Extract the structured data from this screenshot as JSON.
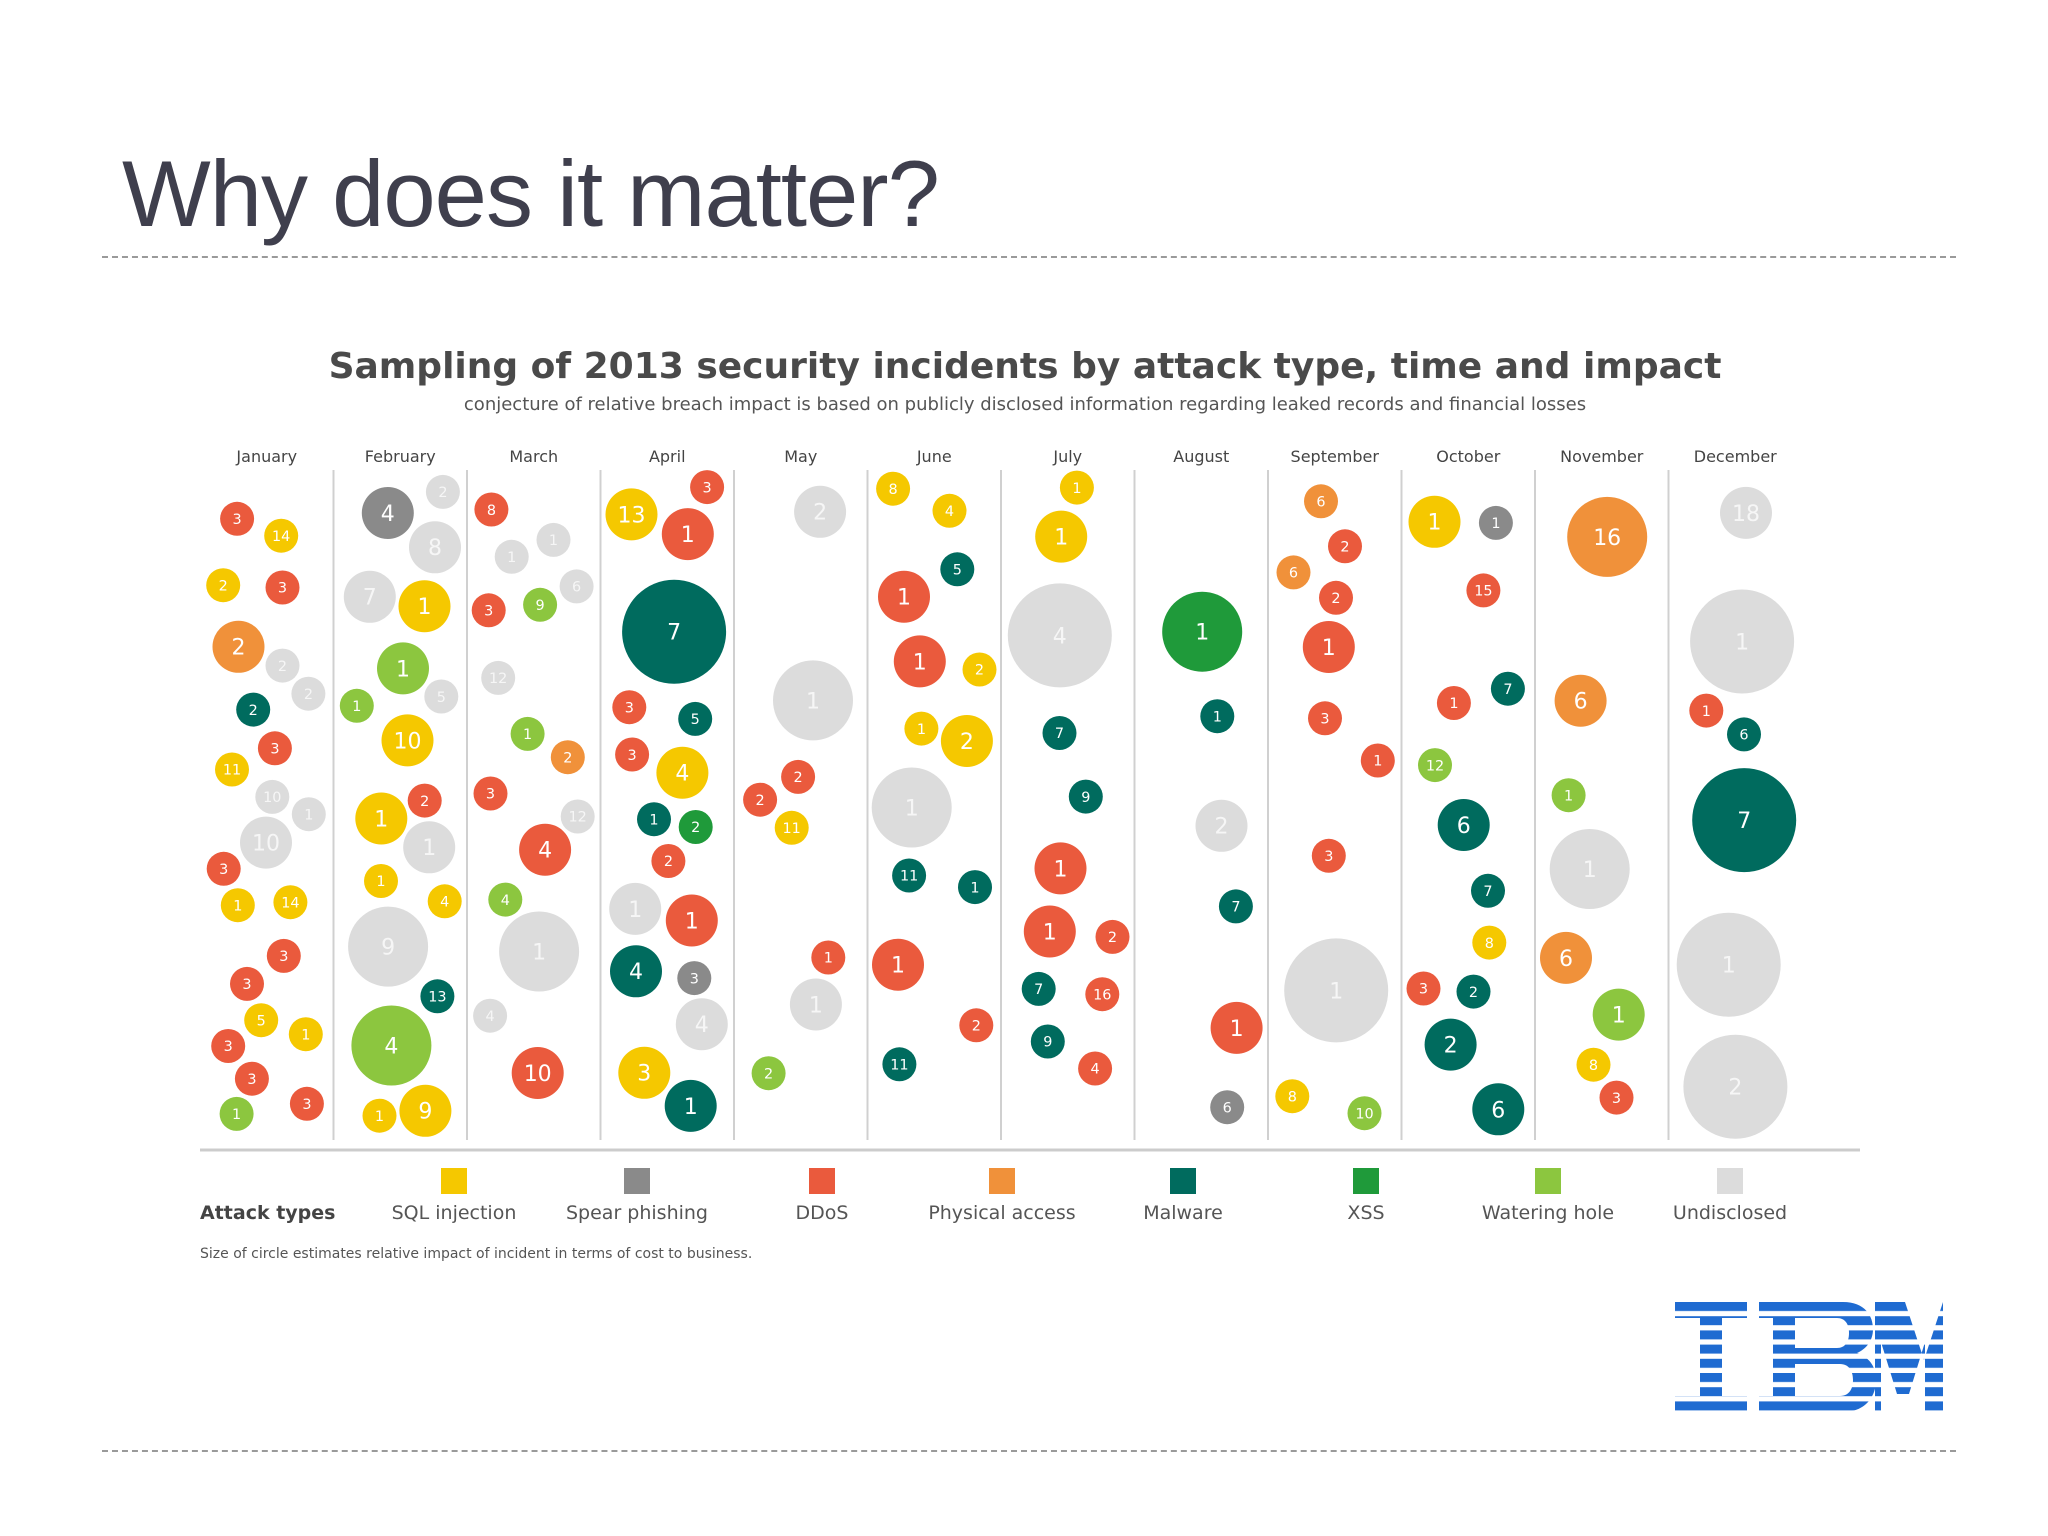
{
  "slide": {
    "title": "Why does it matter?"
  },
  "colors": {
    "SQL injection": "#f5c800",
    "Spear phishing": "#8a8a8a",
    "DDoS": "#ea5a3d",
    "Physical access": "#f0913a",
    "Malware": "#006b5e",
    "XSS": "#1f9a3a",
    "Watering hole": "#8cc63f",
    "Undisclosed": "#dcdcdc"
  },
  "logo": {
    "text": "IBM",
    "color": "#1f6bd1"
  },
  "chart_data": {
    "type": "scatter",
    "title": "Sampling of 2013 security incidents by attack type, time and impact",
    "subtitle": "conjecture of relative breach impact is based on publicly disclosed information regarding leaked records and financial losses",
    "months": [
      "January",
      "February",
      "March",
      "April",
      "May",
      "June",
      "July",
      "August",
      "September",
      "October",
      "November",
      "December"
    ],
    "legend_title": "Attack types",
    "legend": [
      "SQL injection",
      "Spear phishing",
      "DDoS",
      "Physical access",
      "Malware",
      "XSS",
      "Watering hole",
      "Undisclosed"
    ],
    "footnote": "Size of circle estimates relative impact of incident in terms of cost to business.",
    "encoding": {
      "x": "month",
      "color": "attack type",
      "size": "relative impact (1 = small, 5 = largest)",
      "label": "incident number"
    },
    "incidents": [
      {
        "month": "January",
        "type": "DDoS",
        "label": "3",
        "impact": 1
      },
      {
        "month": "January",
        "type": "DDoS",
        "label": "3",
        "impact": 1
      },
      {
        "month": "January",
        "type": "DDoS",
        "label": "3",
        "impact": 1
      },
      {
        "month": "January",
        "type": "SQL injection",
        "label": "14",
        "impact": 1
      },
      {
        "month": "January",
        "type": "DDoS",
        "label": "3",
        "impact": 1
      },
      {
        "month": "January",
        "type": "Undisclosed",
        "label": "10",
        "impact": 2
      },
      {
        "month": "January",
        "type": "Physical access",
        "label": "2",
        "impact": 2
      },
      {
        "month": "January",
        "type": "Undisclosed",
        "label": "10",
        "impact": 1
      },
      {
        "month": "January",
        "type": "DDoS",
        "label": "3",
        "impact": 1
      },
      {
        "month": "January",
        "type": "DDoS",
        "label": "3",
        "impact": 1
      },
      {
        "month": "January",
        "type": "SQL injection",
        "label": "11",
        "impact": 1
      },
      {
        "month": "January",
        "type": "Undisclosed",
        "label": "2",
        "impact": 1
      },
      {
        "month": "January",
        "type": "Watering hole",
        "label": "1",
        "impact": 1
      },
      {
        "month": "January",
        "type": "Malware",
        "label": "2",
        "impact": 1
      },
      {
        "month": "January",
        "type": "SQL injection",
        "label": "14",
        "impact": 1
      },
      {
        "month": "January",
        "type": "Undisclosed",
        "label": "2",
        "impact": 1
      },
      {
        "month": "January",
        "type": "SQL injection",
        "label": "5",
        "impact": 1
      },
      {
        "month": "January",
        "type": "SQL injection",
        "label": "1",
        "impact": 1
      },
      {
        "month": "January",
        "type": "DDoS",
        "label": "3",
        "impact": 1
      },
      {
        "month": "January",
        "type": "SQL injection",
        "label": "2",
        "impact": 1
      },
      {
        "month": "January",
        "type": "DDoS",
        "label": "3",
        "impact": 1
      },
      {
        "month": "January",
        "type": "DDoS",
        "label": "3",
        "impact": 1
      },
      {
        "month": "January",
        "type": "Undisclosed",
        "label": "1",
        "impact": 1
      },
      {
        "month": "January",
        "type": "SQL injection",
        "label": "1",
        "impact": 1
      },
      {
        "month": "February",
        "type": "SQL injection",
        "label": "10",
        "impact": 2
      },
      {
        "month": "February",
        "type": "Watering hole",
        "label": "1",
        "impact": 1
      },
      {
        "month": "February",
        "type": "Undisclosed",
        "label": "9",
        "impact": 3
      },
      {
        "month": "February",
        "type": "SQL injection",
        "label": "1",
        "impact": 1
      },
      {
        "month": "February",
        "type": "DDoS",
        "label": "2",
        "impact": 1
      },
      {
        "month": "February",
        "type": "Watering hole",
        "label": "4",
        "impact": 3
      },
      {
        "month": "February",
        "type": "SQL injection",
        "label": "1",
        "impact": 2
      },
      {
        "month": "February",
        "type": "SQL injection",
        "label": "1",
        "impact": 1
      },
      {
        "month": "February",
        "type": "Undisclosed",
        "label": "1",
        "impact": 2
      },
      {
        "month": "February",
        "type": "Undisclosed",
        "label": "2",
        "impact": 1
      },
      {
        "month": "February",
        "type": "Undisclosed",
        "label": "7",
        "impact": 2
      },
      {
        "month": "February",
        "type": "Spear phishing",
        "label": "4",
        "impact": 2
      },
      {
        "month": "February",
        "type": "Malware",
        "label": "13",
        "impact": 1
      },
      {
        "month": "February",
        "type": "Watering hole",
        "label": "1",
        "impact": 2
      },
      {
        "month": "February",
        "type": "SQL injection",
        "label": "1",
        "impact": 2
      },
      {
        "month": "February",
        "type": "Undisclosed",
        "label": "5",
        "impact": 1
      },
      {
        "month": "February",
        "type": "SQL injection",
        "label": "9",
        "impact": 2
      },
      {
        "month": "February",
        "type": "Undisclosed",
        "label": "8",
        "impact": 2
      },
      {
        "month": "February",
        "type": "SQL injection",
        "label": "4",
        "impact": 1
      },
      {
        "month": "March",
        "type": "Watering hole",
        "label": "4",
        "impact": 1
      },
      {
        "month": "March",
        "type": "DDoS",
        "label": "4",
        "impact": 2
      },
      {
        "month": "March",
        "type": "Undisclosed",
        "label": "1",
        "impact": 1
      },
      {
        "month": "March",
        "type": "Undisclosed",
        "label": "12",
        "impact": 1
      },
      {
        "month": "March",
        "type": "Physical access",
        "label": "2",
        "impact": 1
      },
      {
        "month": "March",
        "type": "Undisclosed",
        "label": "4",
        "impact": 1
      },
      {
        "month": "March",
        "type": "Watering hole",
        "label": "1",
        "impact": 1
      },
      {
        "month": "March",
        "type": "DDoS",
        "label": "10",
        "impact": 2
      },
      {
        "month": "March",
        "type": "DDoS",
        "label": "3",
        "impact": 1
      },
      {
        "month": "March",
        "type": "DDoS",
        "label": "8",
        "impact": 1
      },
      {
        "month": "March",
        "type": "Undisclosed",
        "label": "12",
        "impact": 1
      },
      {
        "month": "March",
        "type": "Undisclosed",
        "label": "1",
        "impact": 1
      },
      {
        "month": "March",
        "type": "Undisclosed",
        "label": "1",
        "impact": 3
      },
      {
        "month": "March",
        "type": "Undisclosed",
        "label": "6",
        "impact": 1
      },
      {
        "month": "March",
        "type": "Watering hole",
        "label": "9",
        "impact": 1
      },
      {
        "month": "March",
        "type": "DDoS",
        "label": "3",
        "impact": 1
      },
      {
        "month": "April",
        "type": "Malware",
        "label": "5",
        "impact": 1
      },
      {
        "month": "April",
        "type": "DDoS",
        "label": "3",
        "impact": 1
      },
      {
        "month": "April",
        "type": "Malware",
        "label": "1",
        "impact": 1
      },
      {
        "month": "April",
        "type": "DDoS",
        "label": "3",
        "impact": 1
      },
      {
        "month": "April",
        "type": "DDoS",
        "label": "2",
        "impact": 1
      },
      {
        "month": "April",
        "type": "Malware",
        "label": "4",
        "impact": 2
      },
      {
        "month": "April",
        "type": "Undisclosed",
        "label": "4",
        "impact": 2
      },
      {
        "month": "April",
        "type": "XSS",
        "label": "2",
        "impact": 1
      },
      {
        "month": "April",
        "type": "DDoS",
        "label": "1",
        "impact": 2
      },
      {
        "month": "April",
        "type": "SQL injection",
        "label": "3",
        "impact": 2
      },
      {
        "month": "April",
        "type": "SQL injection",
        "label": "4",
        "impact": 2
      },
      {
        "month": "April",
        "type": "Malware",
        "label": "7",
        "impact": 4
      },
      {
        "month": "April",
        "type": "Undisclosed",
        "label": "1",
        "impact": 2
      },
      {
        "month": "April",
        "type": "DDoS",
        "label": "1",
        "impact": 2
      },
      {
        "month": "April",
        "type": "DDoS",
        "label": "3",
        "impact": 1
      },
      {
        "month": "April",
        "type": "SQL injection",
        "label": "13",
        "impact": 2
      },
      {
        "month": "April",
        "type": "Spear phishing",
        "label": "3",
        "impact": 1
      },
      {
        "month": "April",
        "type": "Malware",
        "label": "1",
        "impact": 2
      },
      {
        "month": "May",
        "type": "SQL injection",
        "label": "11",
        "impact": 1
      },
      {
        "month": "May",
        "type": "Watering hole",
        "label": "2",
        "impact": 1
      },
      {
        "month": "May",
        "type": "DDoS",
        "label": "2",
        "impact": 1
      },
      {
        "month": "May",
        "type": "Undisclosed",
        "label": "1",
        "impact": 3
      },
      {
        "month": "May",
        "type": "DDoS",
        "label": "1",
        "impact": 1
      },
      {
        "month": "May",
        "type": "Undisclosed",
        "label": "1",
        "impact": 2
      },
      {
        "month": "May",
        "type": "DDoS",
        "label": "2",
        "impact": 1
      },
      {
        "month": "May",
        "type": "Undisclosed",
        "label": "2",
        "impact": 2
      },
      {
        "month": "June",
        "type": "Malware",
        "label": "1",
        "impact": 1
      },
      {
        "month": "June",
        "type": "SQL injection",
        "label": "8",
        "impact": 1
      },
      {
        "month": "June",
        "type": "DDoS",
        "label": "1",
        "impact": 2
      },
      {
        "month": "June",
        "type": "DDoS",
        "label": "1",
        "impact": 2
      },
      {
        "month": "June",
        "type": "Malware",
        "label": "5",
        "impact": 1
      },
      {
        "month": "June",
        "type": "Malware",
        "label": "11",
        "impact": 1
      },
      {
        "month": "June",
        "type": "SQL injection",
        "label": "2",
        "impact": 2
      },
      {
        "month": "June",
        "type": "DDoS",
        "label": "1",
        "impact": 2
      },
      {
        "month": "June",
        "type": "SQL injection",
        "label": "2",
        "impact": 1
      },
      {
        "month": "June",
        "type": "Malware",
        "label": "11",
        "impact": 1
      },
      {
        "month": "June",
        "type": "SQL injection",
        "label": "1",
        "impact": 1
      },
      {
        "month": "June",
        "type": "SQL injection",
        "label": "4",
        "impact": 1
      },
      {
        "month": "June",
        "type": "DDoS",
        "label": "2",
        "impact": 1
      },
      {
        "month": "June",
        "type": "Undisclosed",
        "label": "1",
        "impact": 3
      },
      {
        "month": "July",
        "type": "Malware",
        "label": "7",
        "impact": 1
      },
      {
        "month": "July",
        "type": "DDoS",
        "label": "16",
        "impact": 1
      },
      {
        "month": "July",
        "type": "DDoS",
        "label": "2",
        "impact": 1
      },
      {
        "month": "July",
        "type": "DDoS",
        "label": "4",
        "impact": 1
      },
      {
        "month": "July",
        "type": "SQL injection",
        "label": "1",
        "impact": 1
      },
      {
        "month": "July",
        "type": "DDoS",
        "label": "1",
        "impact": 2
      },
      {
        "month": "July",
        "type": "SQL injection",
        "label": "1",
        "impact": 2
      },
      {
        "month": "July",
        "type": "DDoS",
        "label": "1",
        "impact": 2
      },
      {
        "month": "July",
        "type": "Undisclosed",
        "label": "4",
        "impact": 4
      },
      {
        "month": "July",
        "type": "Malware",
        "label": "7",
        "impact": 1
      },
      {
        "month": "July",
        "type": "Malware",
        "label": "9",
        "impact": 1
      },
      {
        "month": "July",
        "type": "Malware",
        "label": "9",
        "impact": 1
      },
      {
        "month": "August",
        "type": "XSS",
        "label": "1",
        "impact": 3
      },
      {
        "month": "August",
        "type": "Spear phishing",
        "label": "6",
        "impact": 1
      },
      {
        "month": "August",
        "type": "DDoS",
        "label": "1",
        "impact": 2
      },
      {
        "month": "August",
        "type": "Malware",
        "label": "7",
        "impact": 1
      },
      {
        "month": "August",
        "type": "Malware",
        "label": "1",
        "impact": 1
      },
      {
        "month": "August",
        "type": "Undisclosed",
        "label": "2",
        "impact": 2
      },
      {
        "month": "September",
        "type": "DDoS",
        "label": "3",
        "impact": 1
      },
      {
        "month": "September",
        "type": "DDoS",
        "label": "2",
        "impact": 1
      },
      {
        "month": "September",
        "type": "DDoS",
        "label": "3",
        "impact": 1
      },
      {
        "month": "September",
        "type": "Physical access",
        "label": "6",
        "impact": 1
      },
      {
        "month": "September",
        "type": "DDoS",
        "label": "1",
        "impact": 1
      },
      {
        "month": "September",
        "type": "Watering hole",
        "label": "10",
        "impact": 1
      },
      {
        "month": "September",
        "type": "SQL injection",
        "label": "8",
        "impact": 1
      },
      {
        "month": "September",
        "type": "DDoS",
        "label": "1",
        "impact": 2
      },
      {
        "month": "September",
        "type": "DDoS",
        "label": "2",
        "impact": 1
      },
      {
        "month": "September",
        "type": "Physical access",
        "label": "6",
        "impact": 1
      },
      {
        "month": "September",
        "type": "Undisclosed",
        "label": "1",
        "impact": 4
      },
      {
        "month": "October",
        "type": "Spear phishing",
        "label": "1",
        "impact": 1
      },
      {
        "month": "October",
        "type": "DDoS",
        "label": "15",
        "impact": 1
      },
      {
        "month": "October",
        "type": "Malware",
        "label": "7",
        "impact": 1
      },
      {
        "month": "October",
        "type": "DDoS",
        "label": "3",
        "impact": 1
      },
      {
        "month": "October",
        "type": "Watering hole",
        "label": "12",
        "impact": 1
      },
      {
        "month": "October",
        "type": "DDoS",
        "label": "1",
        "impact": 1
      },
      {
        "month": "October",
        "type": "Malware",
        "label": "6",
        "impact": 2
      },
      {
        "month": "October",
        "type": "SQL injection",
        "label": "1",
        "impact": 2
      },
      {
        "month": "October",
        "type": "Malware",
        "label": "6",
        "impact": 2
      },
      {
        "month": "October",
        "type": "Malware",
        "label": "2",
        "impact": 2
      },
      {
        "month": "October",
        "type": "Malware",
        "label": "7",
        "impact": 1
      },
      {
        "month": "October",
        "type": "Malware",
        "label": "2",
        "impact": 1
      },
      {
        "month": "October",
        "type": "SQL injection",
        "label": "8",
        "impact": 1
      },
      {
        "month": "November",
        "type": "Physical access",
        "label": "6",
        "impact": 2
      },
      {
        "month": "November",
        "type": "SQL injection",
        "label": "8",
        "impact": 1
      },
      {
        "month": "November",
        "type": "Watering hole",
        "label": "1",
        "impact": 1
      },
      {
        "month": "November",
        "type": "DDoS",
        "label": "3",
        "impact": 1
      },
      {
        "month": "November",
        "type": "Physical access",
        "label": "16",
        "impact": 3
      },
      {
        "month": "November",
        "type": "Watering hole",
        "label": "1",
        "impact": 2
      },
      {
        "month": "November",
        "type": "Physical access",
        "label": "6",
        "impact": 2
      },
      {
        "month": "November",
        "type": "Undisclosed",
        "label": "1",
        "impact": 3
      },
      {
        "month": "December",
        "type": "Undisclosed",
        "label": "1",
        "impact": 4
      },
      {
        "month": "December",
        "type": "Undisclosed",
        "label": "1",
        "impact": 4
      },
      {
        "month": "December",
        "type": "Undisclosed",
        "label": "2",
        "impact": 4
      },
      {
        "month": "December",
        "type": "DDoS",
        "label": "1",
        "impact": 1
      },
      {
        "month": "December",
        "type": "Malware",
        "label": "6",
        "impact": 1
      },
      {
        "month": "December",
        "type": "Malware",
        "label": "7",
        "impact": 4
      },
      {
        "month": "December",
        "type": "Undisclosed",
        "label": "18",
        "impact": 2
      }
    ]
  }
}
